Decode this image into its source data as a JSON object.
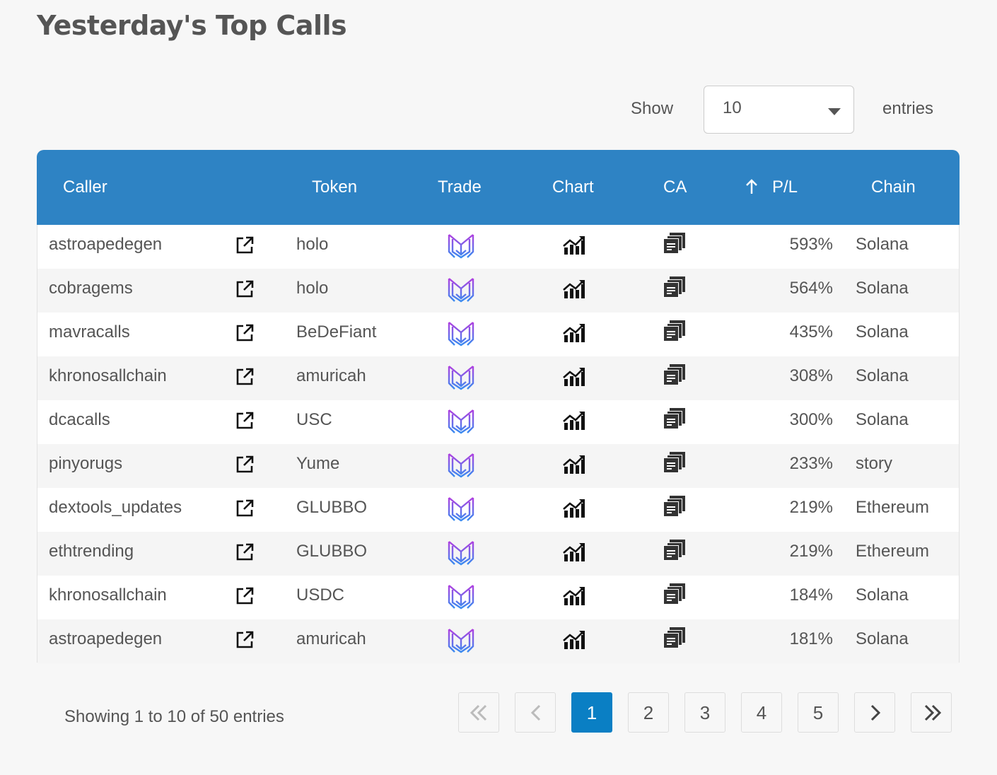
{
  "header": {
    "title": "Yesterday's Top Calls"
  },
  "length_control": {
    "show": "Show",
    "value": "10",
    "entries": "entries"
  },
  "table": {
    "headers": [
      "Caller",
      "Token",
      "Trade",
      "Chart",
      "CA",
      "P/L",
      "Chain"
    ],
    "rows": [
      [
        "astroapedegen",
        "holo",
        "593%",
        "Solana"
      ],
      [
        "cobragems",
        "holo",
        "564%",
        "Solana"
      ],
      [
        "mavracalls",
        "BeDeFiant",
        "435%",
        "Solana"
      ],
      [
        "khronosallchain",
        "amuricah",
        "308%",
        "Solana"
      ],
      [
        "dcacalls",
        "USC",
        "300%",
        "Solana"
      ],
      [
        "pinyorugs",
        "Yume",
        "233%",
        "story"
      ],
      [
        "dextools_updates",
        "GLUBBO",
        "219%",
        "Ethereum"
      ],
      [
        "ethtrending",
        "GLUBBO",
        "219%",
        "Ethereum"
      ],
      [
        "khronosallchain",
        "USDC",
        "184%",
        "Solana"
      ],
      [
        "astroapedegen",
        "amuricah",
        "181%",
        "Solana"
      ]
    ]
  },
  "footer": {
    "info": "Showing 1 to 10 of 50 entries"
  },
  "pagination": {
    "pages": [
      "1",
      "2",
      "3",
      "4",
      "5"
    ],
    "current": "1"
  }
}
